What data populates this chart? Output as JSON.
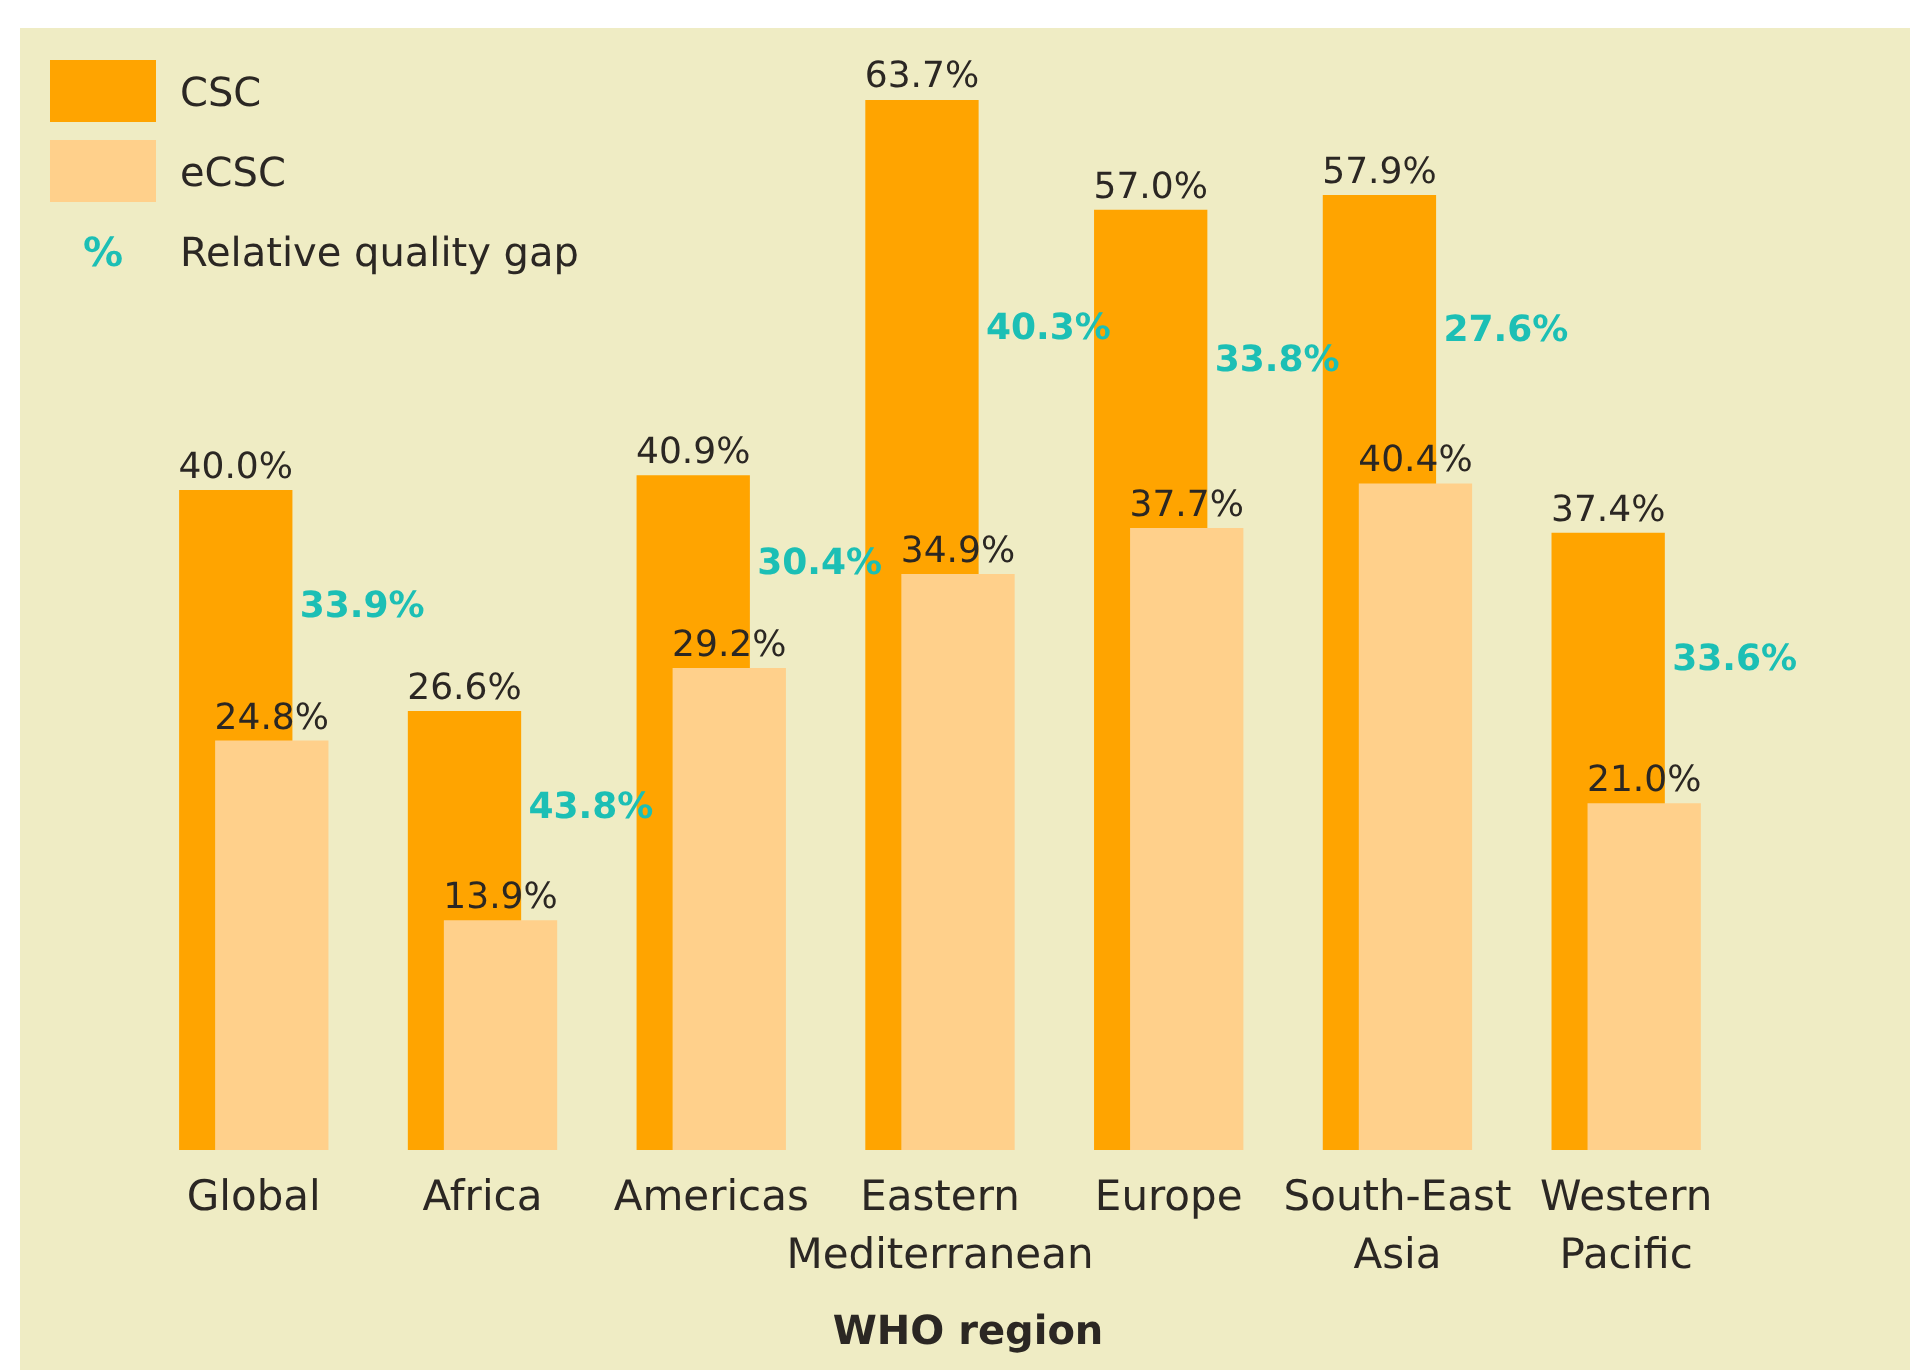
{
  "chart_data": {
    "type": "bar",
    "xlabel": "WHO region",
    "categories": [
      "Global",
      "Africa",
      "Americas",
      "Eastern Mediterranean",
      "Europe",
      "South-East Asia",
      "Western Pacific"
    ],
    "series": [
      {
        "name": "CSC",
        "color": "#ffa400",
        "values": [
          40.0,
          26.6,
          40.9,
          63.7,
          57.0,
          57.9,
          37.4
        ],
        "value_labels": [
          "40.0%",
          "26.6%",
          "40.9%",
          "63.7%",
          "57.0%",
          "57.9%",
          "37.4%"
        ]
      },
      {
        "name": "eCSC",
        "color": "#ffd08b",
        "values": [
          24.8,
          13.9,
          29.2,
          34.9,
          37.7,
          40.4,
          21.0
        ],
        "value_labels": [
          "24.8%",
          "13.9%",
          "29.2%",
          "34.9%",
          "37.7%",
          "40.4%",
          "21.0%"
        ]
      }
    ],
    "annotations": [
      "%",
      "Relative quality gap",
      "33.9%",
      "43.8%",
      "30.4%",
      "40.3%",
      "33.8%",
      "27.6%",
      "33.6%"
    ],
    "tick_labels": "x",
    "legend": "top left"
  }
}
